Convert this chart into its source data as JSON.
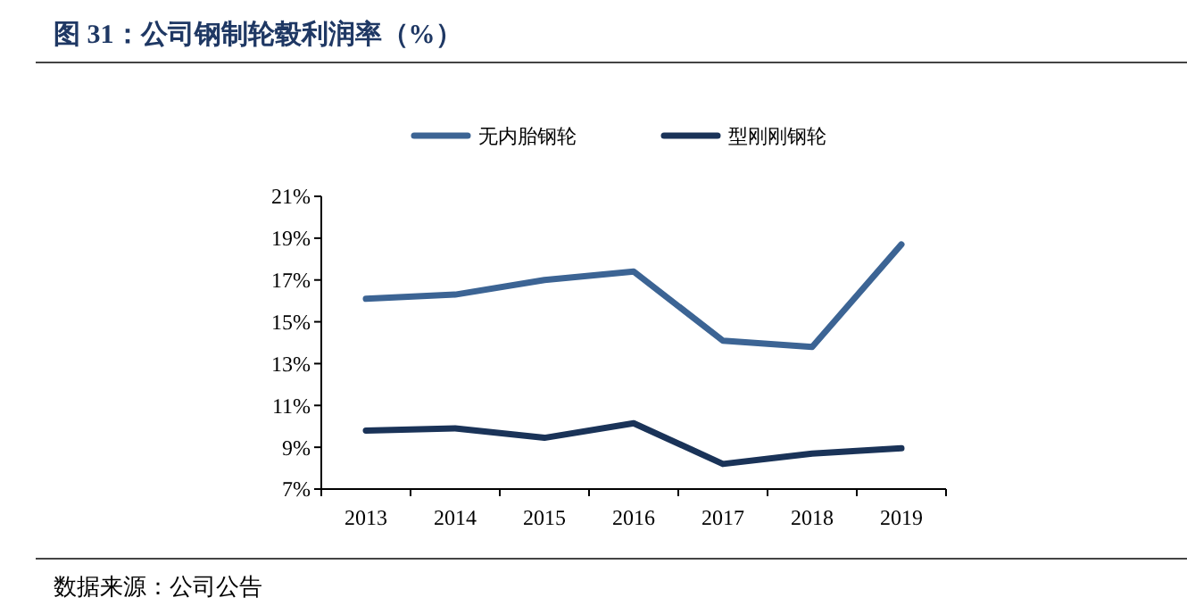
{
  "chart_data": {
    "type": "line",
    "title": "图 31：公司钢制轮毂利润率（%）",
    "categories": [
      "2013",
      "2014",
      "2015",
      "2016",
      "2017",
      "2018",
      "2019"
    ],
    "series": [
      {
        "name": "无内胎钢轮",
        "color": "#3c6494",
        "values": [
          16.1,
          16.3,
          17.0,
          17.4,
          14.1,
          13.8,
          18.7
        ]
      },
      {
        "name": "型刚刚钢轮",
        "color": "#1a3358",
        "values": [
          9.8,
          9.9,
          9.45,
          10.15,
          8.2,
          8.7,
          8.95
        ]
      }
    ],
    "ylim": [
      7,
      21
    ],
    "yticks": [
      {
        "value": 7,
        "label": "7%"
      },
      {
        "value": 9,
        "label": "9%"
      },
      {
        "value": 11,
        "label": "11%"
      },
      {
        "value": 13,
        "label": "13%"
      },
      {
        "value": 15,
        "label": "15%"
      },
      {
        "value": 17,
        "label": "17%"
      },
      {
        "value": 19,
        "label": "19%"
      },
      {
        "value": 21,
        "label": "21%"
      }
    ],
    "legend": "top",
    "grid": false,
    "annotations": [
      "数据来源：公司公告"
    ]
  }
}
